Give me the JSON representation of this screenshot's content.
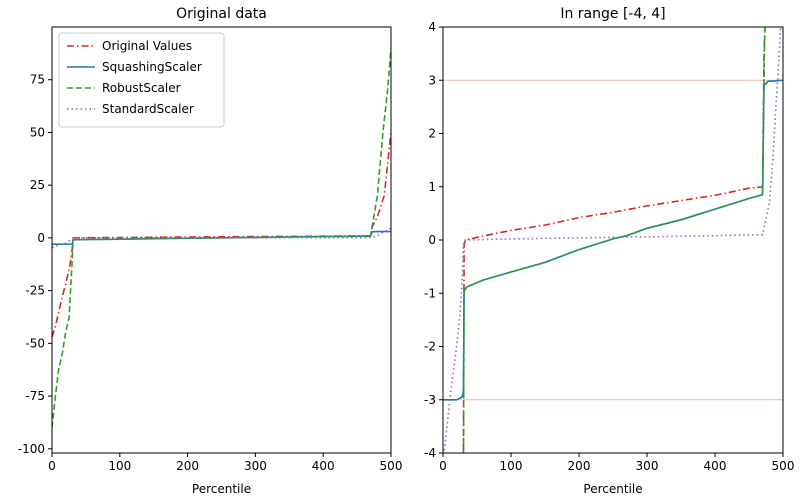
{
  "chart_data": [
    {
      "type": "line",
      "title": "Original data",
      "xlabel": "Percentile",
      "ylabel": "",
      "xlim": [
        0,
        500
      ],
      "ylim": [
        -102,
        100
      ],
      "xticks": [
        "0",
        "100",
        "200",
        "300",
        "400",
        "500"
      ],
      "yticks": [
        "-100",
        "-75",
        "-50",
        "-25",
        "0",
        "25",
        "50",
        "75"
      ],
      "grid": false,
      "legend_position": "top-left",
      "series": [
        {
          "name": "Original Values",
          "color": "#d62728",
          "dash": "dashdot",
          "points": [
            [
              0,
              -47
            ],
            [
              5,
              -42
            ],
            [
              10,
              -35
            ],
            [
              15,
              -28
            ],
            [
              20,
              -22
            ],
            [
              25,
              -15
            ],
            [
              28,
              -10
            ],
            [
              30,
              -5
            ],
            [
              31,
              0
            ],
            [
              50,
              0.1
            ],
            [
              100,
              0.2
            ],
            [
              200,
              0.4
            ],
            [
              300,
              0.6
            ],
            [
              400,
              0.8
            ],
            [
              470,
              1.0
            ],
            [
              472,
              5
            ],
            [
              480,
              10
            ],
            [
              490,
              20
            ],
            [
              495,
              35
            ],
            [
              500,
              50
            ]
          ]
        },
        {
          "name": "SquashingScaler",
          "color": "#1f77b4",
          "dash": "solid",
          "points": [
            [
              0,
              -3
            ],
            [
              30,
              -2.95
            ],
            [
              31,
              -0.9
            ],
            [
              60,
              -0.75
            ],
            [
              100,
              -0.6
            ],
            [
              200,
              -0.15
            ],
            [
              270,
              0.1
            ],
            [
              350,
              0.4
            ],
            [
              420,
              0.7
            ],
            [
              470,
              0.85
            ],
            [
              472,
              2.9
            ],
            [
              480,
              3.0
            ],
            [
              500,
              3.0
            ]
          ]
        },
        {
          "name": "RobustScaler",
          "color": "#2ca02c",
          "dash": "dashed",
          "points": [
            [
              0,
              -90
            ],
            [
              5,
              -75
            ],
            [
              10,
              -62
            ],
            [
              15,
              -55
            ],
            [
              20,
              -45
            ],
            [
              25,
              -38
            ],
            [
              30,
              -10
            ],
            [
              31,
              -0.9
            ],
            [
              60,
              -0.75
            ],
            [
              100,
              -0.6
            ],
            [
              200,
              -0.15
            ],
            [
              270,
              0.1
            ],
            [
              350,
              0.4
            ],
            [
              420,
              0.7
            ],
            [
              470,
              0.85
            ],
            [
              472,
              5
            ],
            [
              480,
              20
            ],
            [
              488,
              50
            ],
            [
              495,
              70
            ],
            [
              500,
              90
            ]
          ]
        },
        {
          "name": "StandardScaler",
          "color": "#9467bd",
          "dash": "dotted",
          "points": [
            [
              0,
              -4.5
            ],
            [
              10,
              -3.4
            ],
            [
              20,
              -2.5
            ],
            [
              25,
              -1.5
            ],
            [
              30,
              -0.1
            ],
            [
              31,
              0
            ],
            [
              100,
              0.02
            ],
            [
              200,
              0.04
            ],
            [
              300,
              0.06
            ],
            [
              400,
              0.08
            ],
            [
              470,
              0.1
            ],
            [
              480,
              1.0
            ],
            [
              490,
              3.0
            ],
            [
              500,
              4.5
            ]
          ]
        }
      ]
    },
    {
      "type": "line",
      "title": "In range [-4, 4]",
      "xlabel": "Percentile",
      "ylabel": "",
      "xlim": [
        0,
        500
      ],
      "ylim": [
        -4,
        4
      ],
      "xticks": [
        "0",
        "100",
        "200",
        "300",
        "400",
        "500"
      ],
      "yticks": [
        "-4",
        "-3",
        "-2",
        "-1",
        "0",
        "1",
        "2",
        "3",
        "4"
      ],
      "hlines": [
        -3,
        3
      ],
      "hline_color": "#f4b6b6",
      "grid": false,
      "series": [
        {
          "name": "Original Values",
          "color": "#d62728",
          "dash": "dashdot",
          "points": [
            [
              30,
              -4.5
            ],
            [
              31,
              -0.1
            ],
            [
              33,
              0.0
            ],
            [
              50,
              0.05
            ],
            [
              100,
              0.18
            ],
            [
              150,
              0.28
            ],
            [
              200,
              0.42
            ],
            [
              250,
              0.52
            ],
            [
              300,
              0.64
            ],
            [
              350,
              0.74
            ],
            [
              400,
              0.84
            ],
            [
              450,
              0.97
            ],
            [
              470,
              1.0
            ],
            [
              472,
              3.5
            ],
            [
              475,
              4.5
            ]
          ]
        },
        {
          "name": "SquashingScaler",
          "color": "#1f77b4",
          "dash": "solid",
          "points": [
            [
              0,
              -3.0
            ],
            [
              20,
              -3.0
            ],
            [
              28,
              -2.95
            ],
            [
              30,
              -2.85
            ],
            [
              31,
              -0.95
            ],
            [
              35,
              -0.88
            ],
            [
              60,
              -0.75
            ],
            [
              100,
              -0.6
            ],
            [
              150,
              -0.42
            ],
            [
              200,
              -0.18
            ],
            [
              250,
              0.02
            ],
            [
              270,
              0.08
            ],
            [
              300,
              0.22
            ],
            [
              350,
              0.38
            ],
            [
              400,
              0.58
            ],
            [
              450,
              0.78
            ],
            [
              470,
              0.85
            ],
            [
              472,
              2.9
            ],
            [
              478,
              2.98
            ],
            [
              500,
              3.0
            ]
          ]
        },
        {
          "name": "RobustScaler",
          "color": "#2ca02c",
          "dash": "dashed",
          "points": [
            [
              30,
              -4.5
            ],
            [
              31,
              -0.95
            ],
            [
              35,
              -0.88
            ],
            [
              60,
              -0.75
            ],
            [
              100,
              -0.6
            ],
            [
              150,
              -0.42
            ],
            [
              200,
              -0.18
            ],
            [
              250,
              0.02
            ],
            [
              270,
              0.08
            ],
            [
              300,
              0.22
            ],
            [
              350,
              0.38
            ],
            [
              400,
              0.58
            ],
            [
              450,
              0.78
            ],
            [
              470,
              0.85
            ],
            [
              472,
              3.0
            ],
            [
              474,
              4.5
            ]
          ]
        },
        {
          "name": "StandardScaler",
          "color": "#9467bd",
          "dash": "dotted",
          "points": [
            [
              0,
              -4.2
            ],
            [
              5,
              -3.6
            ],
            [
              10,
              -3.0
            ],
            [
              15,
              -2.5
            ],
            [
              20,
              -2.0
            ],
            [
              25,
              -1.4
            ],
            [
              28,
              -0.8
            ],
            [
              30,
              -0.1
            ],
            [
              31,
              0.0
            ],
            [
              100,
              0.02
            ],
            [
              200,
              0.04
            ],
            [
              300,
              0.06
            ],
            [
              400,
              0.08
            ],
            [
              470,
              0.1
            ],
            [
              480,
              0.7
            ],
            [
              485,
              1.5
            ],
            [
              490,
              2.6
            ],
            [
              495,
              3.6
            ],
            [
              498,
              4.5
            ]
          ]
        }
      ]
    }
  ]
}
